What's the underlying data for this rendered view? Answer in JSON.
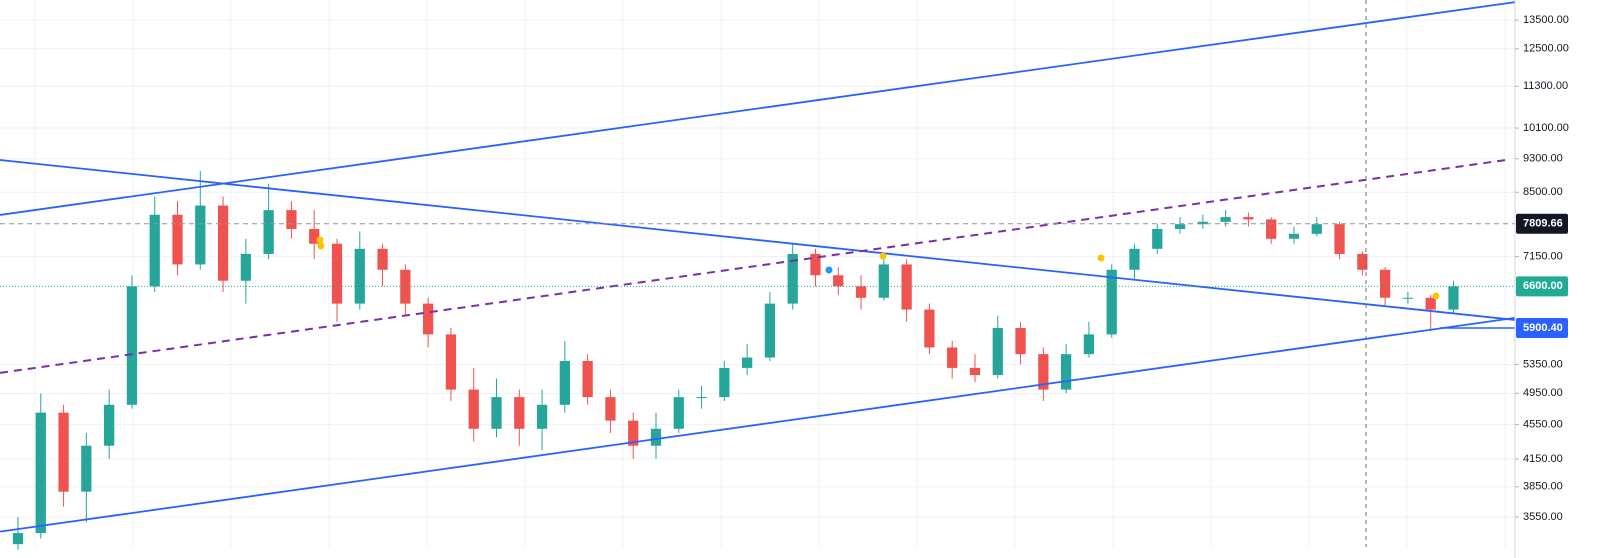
{
  "chart_data": {
    "type": "candlestick",
    "log_scale": true,
    "grid": true,
    "up_color": "#26a69a",
    "down_color": "#ef5350",
    "xlim": [
      -0.79,
      65.7
    ],
    "ylim": [
      3275,
      14250
    ],
    "yticks": [
      {
        "value": 3550,
        "label": "3550.00"
      },
      {
        "value": 3850,
        "label": "3850.00"
      },
      {
        "value": 4150,
        "label": "4150.00"
      },
      {
        "value": 4550,
        "label": "4550.00"
      },
      {
        "value": 4950,
        "label": "4950.00"
      },
      {
        "value": 5350,
        "label": "5350.00"
      },
      {
        "value": 7150,
        "label": "7150.00"
      },
      {
        "value": 8500,
        "label": "8500.00"
      },
      {
        "value": 9300,
        "label": "9300.00"
      },
      {
        "value": 10100,
        "label": "10100.00"
      },
      {
        "value": 11300,
        "label": "11300.00"
      },
      {
        "value": 12500,
        "label": "12500.00"
      },
      {
        "value": 13500,
        "label": "13500.00"
      }
    ],
    "open": [
      3300,
      3400,
      4700,
      3800,
      4300,
      4800,
      6600,
      8000,
      7000,
      8200,
      6700,
      7200,
      8100,
      7700,
      7400,
      6300,
      7300,
      6900,
      6300,
      5800,
      5000,
      4500,
      4900,
      4500,
      4800,
      5400,
      4900,
      4600,
      4300,
      4500,
      4900,
      4900,
      5300,
      5450,
      6300,
      7200,
      6800,
      6600,
      6400,
      7000,
      6200,
      5600,
      5300,
      5200,
      5900,
      5500,
      5000,
      5500,
      5800,
      6900,
      7300,
      7700,
      7800,
      7850,
      7950,
      7900,
      7500,
      7600,
      7800,
      7200,
      6900,
      6400,
      6400,
      6200
    ],
    "high": [
      3550,
      4950,
      4800,
      4450,
      5000,
      6800,
      8400,
      8300,
      9000,
      8400,
      7500,
      8700,
      8300,
      8100,
      7500,
      7650,
      7400,
      7000,
      6400,
      5900,
      5300,
      5150,
      5000,
      5000,
      5700,
      5500,
      5000,
      4700,
      4700,
      5000,
      5050,
      5400,
      5650,
      6500,
      7400,
      7300,
      6950,
      6800,
      7150,
      7100,
      6300,
      5700,
      5500,
      6100,
      6000,
      5600,
      5650,
      6000,
      7000,
      7400,
      7800,
      7950,
      8000,
      8100,
      8050,
      7950,
      7750,
      7950,
      7850,
      7250,
      6950,
      6500,
      6450,
      6700
    ],
    "low": [
      3250,
      3350,
      3650,
      3500,
      4150,
      4750,
      6500,
      6800,
      6900,
      6500,
      6300,
      7100,
      7500,
      7100,
      6000,
      6200,
      6600,
      6100,
      5600,
      4850,
      4350,
      4400,
      4300,
      4250,
      4700,
      4800,
      4450,
      4150,
      4150,
      4450,
      4750,
      4850,
      5200,
      5400,
      6200,
      6600,
      6450,
      6200,
      6350,
      6000,
      5500,
      5150,
      5100,
      5150,
      5350,
      4850,
      4950,
      5450,
      5750,
      6700,
      7200,
      7600,
      7700,
      7750,
      7750,
      7400,
      7400,
      7550,
      7100,
      6800,
      6250,
      6300,
      5850,
      6150
    ],
    "close": [
      3400,
      4700,
      3800,
      4300,
      4800,
      6600,
      8000,
      7000,
      8200,
      6700,
      7200,
      8100,
      7700,
      7400,
      6300,
      7300,
      6900,
      6300,
      5800,
      5000,
      4500,
      4900,
      4500,
      4800,
      5400,
      4900,
      4600,
      4300,
      4500,
      4900,
      4900,
      5300,
      5450,
      6300,
      7200,
      6800,
      6600,
      6400,
      7000,
      6200,
      5600,
      5300,
      5200,
      5900,
      5500,
      5000,
      5500,
      5800,
      6900,
      7300,
      7700,
      7800,
      7850,
      7950,
      7900,
      7500,
      7600,
      7800,
      7200,
      6900,
      6400,
      6400,
      6200,
      6600
    ],
    "trendlines": [
      {
        "color": "#2962ff",
        "dashed": false,
        "x": [
          -0.79,
          65.7
        ],
        "y": [
          7996,
          14168
        ]
      },
      {
        "color": "#2962ff",
        "dashed": false,
        "x": [
          -0.79,
          65.7
        ],
        "y": [
          9269,
          6030
        ]
      },
      {
        "color": "#2962ff",
        "dashed": false,
        "x": [
          -0.79,
          65.7
        ],
        "y": [
          3413,
          6064
        ]
      },
      {
        "color": "#7b2fa8",
        "dashed": true,
        "x": [
          -0.79,
          65.3
        ],
        "y": [
          5230,
          9269
        ]
      }
    ],
    "price_lines": [
      {
        "value": 7809.66,
        "color": "#131722",
        "line_color": "#8a94a6",
        "style": "dashed",
        "from": -0.79
      },
      {
        "value": 6600,
        "label": "6600.00",
        "color": "#22ab94",
        "line_color": "#22ab94",
        "style": "dotted",
        "from": -0.79
      },
      {
        "value": 5900.4,
        "label": "5900.40",
        "color": "#2962ff",
        "line_color": "#2962ff",
        "style": "solid",
        "from": 62.4
      }
    ]
  }
}
